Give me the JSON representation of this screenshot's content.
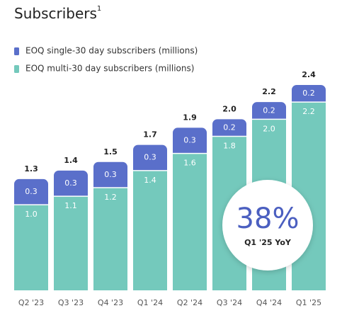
{
  "chart_data": {
    "type": "stacked-bar",
    "title": "Subscribers",
    "title_footnote": "1",
    "categories": [
      "Q2 '23",
      "Q3 '23",
      "Q4 '23",
      "Q1 '24",
      "Q2 '24",
      "Q3 '24",
      "Q4 '24",
      "Q1 '25"
    ],
    "series": [
      {
        "name": "EOQ multi-30 day subscribers  (millions)",
        "color": "#74c9bc",
        "values": [
          1.0,
          1.1,
          1.2,
          1.4,
          1.6,
          1.8,
          2.0,
          2.2
        ],
        "value_labels": [
          "1.0",
          "1.1",
          "1.2",
          "1.4",
          "1.6",
          "1.8",
          "2.0",
          "2.2"
        ]
      },
      {
        "name": "EOQ single-30 day subscribers (millions)",
        "color": "#5a6fca",
        "values": [
          0.3,
          0.3,
          0.3,
          0.3,
          0.3,
          0.2,
          0.2,
          0.2
        ],
        "value_labels": [
          "0.3",
          "0.3",
          "0.3",
          "0.3",
          "0.3",
          "0.2",
          "0.2",
          "0.2"
        ]
      }
    ],
    "totals": {
      "values": [
        1.3,
        1.4,
        1.5,
        1.7,
        1.9,
        2.0,
        2.2,
        2.4
      ],
      "value_labels": [
        "1.3",
        "1.4",
        "1.5",
        "1.7",
        "1.9",
        "2.0",
        "2.2",
        "2.4"
      ]
    },
    "ylim": [
      0,
      2.4
    ],
    "annotation": {
      "value": "38%",
      "label": "Q1 '25 YoY",
      "color": "#4b5fc0"
    }
  }
}
